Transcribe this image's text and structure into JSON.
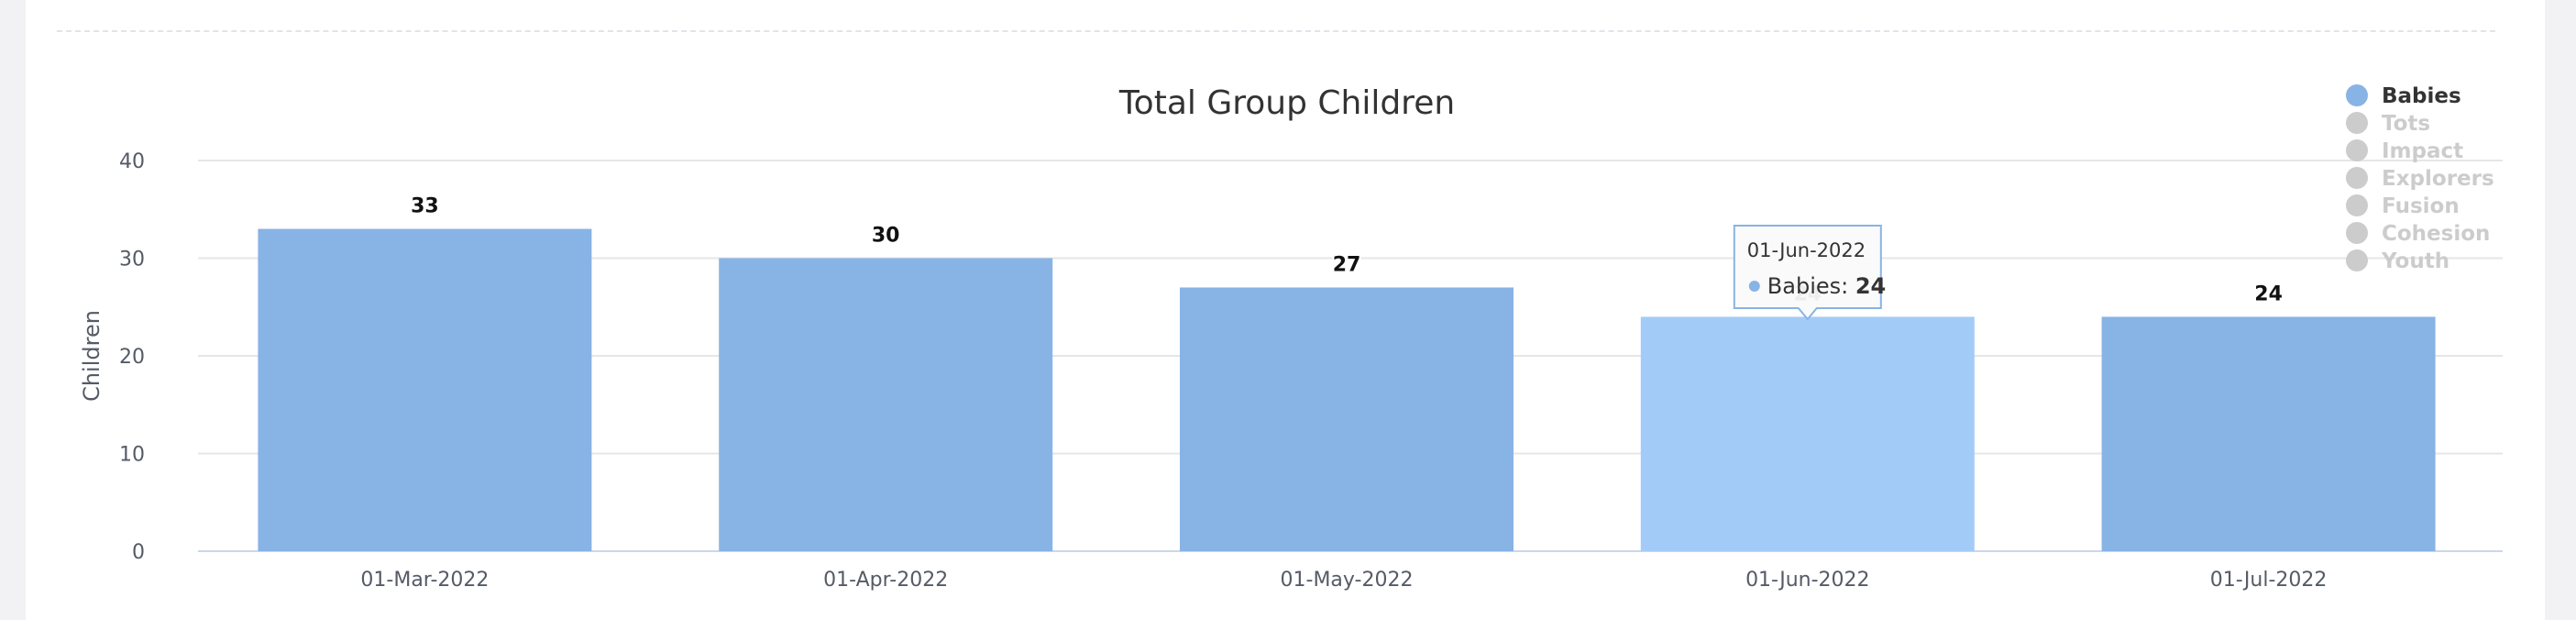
{
  "chart_data": {
    "type": "bar",
    "title": "Total Group Children",
    "ylabel": "Children",
    "xlabel": "",
    "ylim": [
      0,
      40
    ],
    "yticks": [
      0,
      10,
      20,
      30,
      40
    ],
    "categories": [
      "01-Mar-2022",
      "01-Apr-2022",
      "01-May-2022",
      "01-Jun-2022",
      "01-Jul-2022"
    ],
    "series": [
      {
        "name": "Babies",
        "values": [
          33,
          30,
          27,
          24,
          24
        ],
        "color": "#88b3e5",
        "visible": true
      }
    ],
    "legend": {
      "placement": "top-right",
      "items": [
        {
          "label": "Babies",
          "active": true,
          "color": "#88b3e5"
        },
        {
          "label": "Tots",
          "active": false,
          "color": "#cccccc"
        },
        {
          "label": "Impact",
          "active": false,
          "color": "#cccccc"
        },
        {
          "label": "Explorers",
          "active": false,
          "color": "#cccccc"
        },
        {
          "label": "Fusion",
          "active": false,
          "color": "#cccccc"
        },
        {
          "label": "Cohesion",
          "active": false,
          "color": "#cccccc"
        },
        {
          "label": "Youth",
          "active": false,
          "color": "#cccccc"
        }
      ]
    },
    "tooltip": {
      "category_index": 3,
      "title": "01-Jun-2022",
      "series": "Babies",
      "value_text": "24"
    },
    "hover_color": "#a3cbf7",
    "grid": true
  }
}
